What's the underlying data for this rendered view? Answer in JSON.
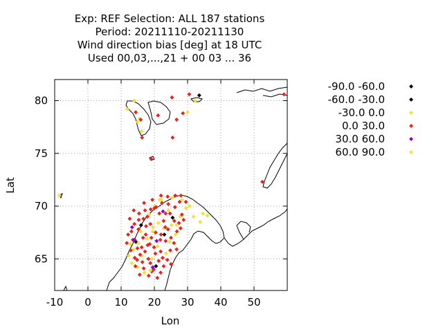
{
  "chart_data": {
    "type": "scatter",
    "title_lines": [
      "Exp: REF   Selection: ALL    187 stations",
      "Period: 20211110-20211130",
      "Wind direction bias [deg] at  18 UTC",
      "Used  00,03,...,21  + 00 03 ... 36"
    ],
    "xlabel": "Lon",
    "ylabel": "Lat",
    "xlim": [
      -10,
      60
    ],
    "ylim": [
      62,
      82
    ],
    "xticks": [
      -10,
      0,
      10,
      20,
      30,
      40,
      50
    ],
    "yticks": [
      65,
      70,
      75,
      80
    ],
    "grid": true,
    "legend_position": "right",
    "colors": {
      "bin_-90_-60": "#000000",
      "bin_-60_-30": "#000000",
      "bin_-30_0": "#f5e03a",
      "bin_0_30": "#e8251c",
      "bin_30_60": "#8a00e0",
      "bin_60_90": "#f5e03a",
      "coast": "#000000",
      "grid": "#a0a0a0"
    },
    "series": [
      {
        "name": "-90.0 -60.0",
        "color": "#000000",
        "points": [
          [
            33.5,
            80.5
          ],
          [
            16.0,
            68.2
          ],
          [
            20.5,
            64.3
          ]
        ]
      },
      {
        "name": "-60.0 -30.0",
        "color": "#000000",
        "points": [
          [
            14.5,
            66.6
          ],
          [
            23.0,
            67.3
          ],
          [
            25.5,
            68.9
          ]
        ]
      },
      {
        "name": "-30.0 0.0",
        "color": "#f5e03a",
        "points": [
          [
            -8.6,
            71.0
          ],
          [
            15.5,
            78.3
          ],
          [
            11.8,
            79.2
          ],
          [
            16.1,
            77.1
          ],
          [
            30.0,
            78.9
          ],
          [
            32.3,
            80.0
          ],
          [
            14.9,
            78.0
          ],
          [
            14.0,
            80.0
          ],
          [
            12.3,
            65.3
          ],
          [
            13.7,
            65.9
          ],
          [
            15.2,
            66.5
          ],
          [
            17.8,
            66.9
          ],
          [
            19.5,
            67.6
          ],
          [
            21.2,
            68.4
          ],
          [
            22.8,
            67.9
          ],
          [
            24.6,
            66.6
          ],
          [
            26.3,
            67.3
          ],
          [
            27.8,
            69.0
          ],
          [
            29.5,
            69.8
          ],
          [
            31.8,
            69.0
          ],
          [
            33.8,
            68.5
          ],
          [
            34.6,
            69.3
          ],
          [
            36.0,
            69.1
          ],
          [
            18.4,
            69.2
          ],
          [
            20.2,
            70.0
          ],
          [
            22.1,
            70.6
          ],
          [
            25.4,
            70.8
          ],
          [
            14.9,
            64.2
          ],
          [
            17.0,
            63.7
          ],
          [
            16.2,
            65.3
          ],
          [
            19.3,
            65.0
          ],
          [
            21.0,
            66.2
          ],
          [
            23.5,
            65.5
          ],
          [
            12.8,
            66.4
          ],
          [
            15.9,
            67.6
          ],
          [
            19.6,
            68.0
          ],
          [
            24.2,
            69.6
          ],
          [
            28.3,
            70.6
          ],
          [
            30.6,
            70.0
          ],
          [
            26.7,
            68.2
          ]
        ]
      },
      {
        "name": "0.0 30.0",
        "color": "#e8251c",
        "points": [
          [
            30.5,
            80.6
          ],
          [
            25.3,
            80.3
          ],
          [
            59.0,
            80.6
          ],
          [
            16.3,
            76.5
          ],
          [
            19.0,
            74.5
          ],
          [
            25.5,
            76.5
          ],
          [
            52.5,
            72.3
          ],
          [
            28.6,
            78.8
          ],
          [
            26.7,
            78.2
          ],
          [
            21.1,
            78.6
          ],
          [
            15.9,
            78.2
          ],
          [
            14.4,
            78.9
          ],
          [
            14.9,
            66.0
          ],
          [
            15.7,
            65.4
          ],
          [
            14.3,
            64.3
          ],
          [
            16.4,
            64.7
          ],
          [
            17.2,
            65.7
          ],
          [
            18.0,
            66.3
          ],
          [
            18.8,
            64.6
          ],
          [
            17.4,
            67.3
          ],
          [
            19.1,
            67.0
          ],
          [
            20.3,
            65.5
          ],
          [
            21.3,
            64.8
          ],
          [
            22.5,
            65.1
          ],
          [
            23.4,
            66.7
          ],
          [
            24.1,
            67.8
          ],
          [
            22.8,
            68.6
          ],
          [
            21.5,
            69.3
          ],
          [
            20.0,
            69.8
          ],
          [
            18.8,
            68.3
          ],
          [
            17.9,
            69.0
          ],
          [
            16.7,
            68.8
          ],
          [
            15.3,
            68.7
          ],
          [
            14.0,
            68.3
          ],
          [
            13.1,
            67.6
          ],
          [
            12.1,
            67.3
          ],
          [
            11.7,
            66.5
          ],
          [
            12.9,
            65.8
          ],
          [
            14.1,
            65.1
          ],
          [
            15.6,
            63.5
          ],
          [
            16.8,
            64.1
          ],
          [
            18.3,
            63.4
          ],
          [
            19.2,
            63.8
          ],
          [
            20.9,
            63.2
          ],
          [
            21.9,
            63.7
          ],
          [
            22.8,
            64.3
          ],
          [
            23.9,
            64.9
          ],
          [
            24.8,
            65.8
          ],
          [
            25.9,
            66.5
          ],
          [
            26.8,
            67.6
          ],
          [
            27.4,
            68.4
          ],
          [
            28.3,
            69.2
          ],
          [
            29.5,
            70.4
          ],
          [
            28.0,
            71.0
          ],
          [
            26.3,
            71.0
          ],
          [
            24.0,
            70.9
          ],
          [
            22.3,
            70.3
          ],
          [
            20.5,
            69.9
          ],
          [
            18.9,
            69.7
          ],
          [
            17.2,
            69.6
          ],
          [
            15.4,
            69.3
          ],
          [
            16.6,
            67.0
          ],
          [
            19.9,
            66.1
          ],
          [
            21.8,
            66.8
          ],
          [
            25.0,
            67.0
          ],
          [
            23.4,
            69.3
          ],
          [
            26.2,
            69.9
          ],
          [
            27.6,
            70.4
          ],
          [
            12.6,
            68.8
          ],
          [
            13.8,
            69.6
          ],
          [
            16.9,
            70.3
          ],
          [
            19.4,
            70.6
          ],
          [
            22.0,
            71.0
          ],
          [
            24.2,
            70.2
          ],
          [
            26.0,
            68.6
          ],
          [
            28.8,
            68.7
          ],
          [
            27.9,
            67.9
          ],
          [
            25.0,
            64.5
          ],
          [
            26.7,
            65.9
          ],
          [
            18.2,
            65.0
          ],
          [
            14.8,
            64.9
          ],
          [
            19.8,
            64.0
          ],
          [
            21.9,
            65.7
          ],
          [
            23.3,
            68.0
          ],
          [
            16.2,
            66.1
          ],
          [
            17.5,
            68.1
          ],
          [
            20.4,
            67.5
          ],
          [
            24.7,
            69.3
          ],
          [
            13.5,
            66.8
          ],
          [
            15.2,
            67.8
          ],
          [
            18.6,
            66.4
          ],
          [
            22.0,
            67.3
          ]
        ]
      },
      {
        "name": "30.0 60.0",
        "color": "#8a00e0",
        "points": [
          [
            14.0,
            66.8
          ],
          [
            20.7,
            66.7
          ],
          [
            22.6,
            69.5
          ],
          [
            19.5,
            64.2
          ],
          [
            13.3,
            68.0
          ]
        ]
      },
      {
        "name": "60.0 90.0",
        "color": "#f5e03a",
        "points": [
          [
            13.2,
            64.6
          ],
          [
            18.8,
            63.9
          ],
          [
            21.6,
            70.6
          ],
          [
            25.2,
            68.2
          ]
        ]
      }
    ]
  }
}
